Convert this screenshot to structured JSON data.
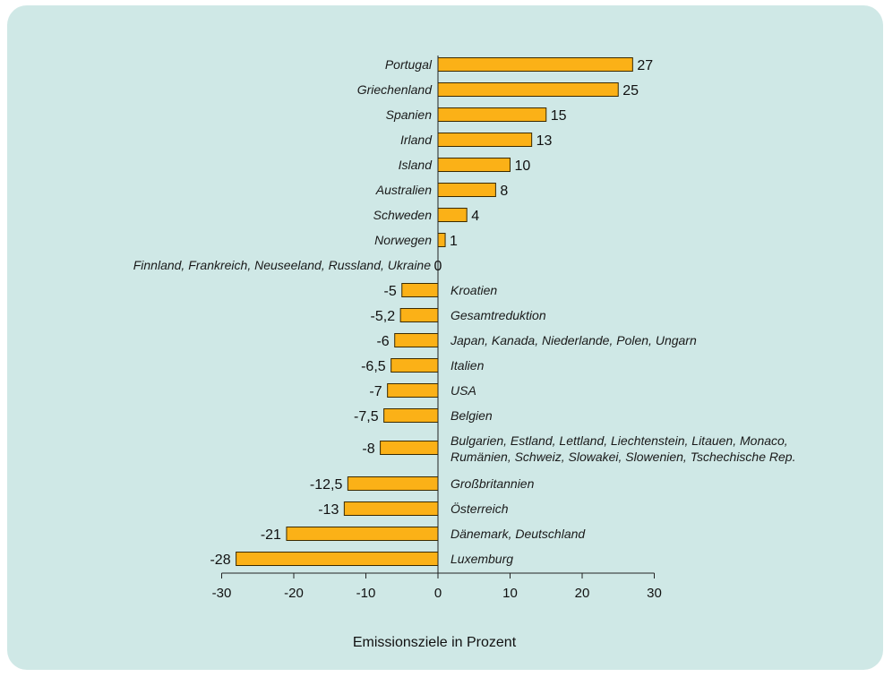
{
  "colors": {
    "panel": "#cfe8e6",
    "bar": "#fbb117",
    "bar_stroke": "#3a2a00",
    "axis": "#222222"
  },
  "chart_data": {
    "type": "bar",
    "orientation": "horizontal",
    "title": "",
    "xlabel": "Emissionsziele in Prozent",
    "ylabel": "",
    "xlim": [
      -30,
      30
    ],
    "xticks": [
      "-30",
      "-20",
      "-10",
      "0",
      "10",
      "20",
      "30"
    ],
    "grid": false,
    "categories": [
      "Portugal",
      "Griechenland",
      "Spanien",
      "Irland",
      "Island",
      "Australien",
      "Schweden",
      "Norwegen",
      "Finnland, Frankreich, Neuseeland, Russland, Ukraine",
      "Kroatien",
      "Gesamtreduktion",
      "Japan, Kanada, Niederlande, Polen, Ungarn",
      "Italien",
      "USA",
      "Belgien",
      "Bulgarien, Estland, Lettland, Liechtenstein, Litauen, Monaco, Rumänien, Schweiz, Slowakei, Slowenien, Tschechische Rep.",
      "Großbritannien",
      "Österreich",
      "Dänemark, Deutschland",
      "Luxemburg"
    ],
    "values": [
      27,
      25,
      15,
      13,
      10,
      8,
      4,
      1,
      0,
      -5,
      -5.2,
      -6,
      -6.5,
      -7,
      -7.5,
      -8,
      -12.5,
      -13,
      -21,
      -28
    ],
    "value_labels": [
      "27",
      "25",
      "15",
      "13",
      "10",
      "8",
      "4",
      "1",
      "0",
      "-5",
      "-5,2",
      "-6",
      "-6,5",
      "-7",
      "-7,5",
      "-8",
      "-12,5",
      "-13",
      "-21",
      "-28"
    ]
  }
}
